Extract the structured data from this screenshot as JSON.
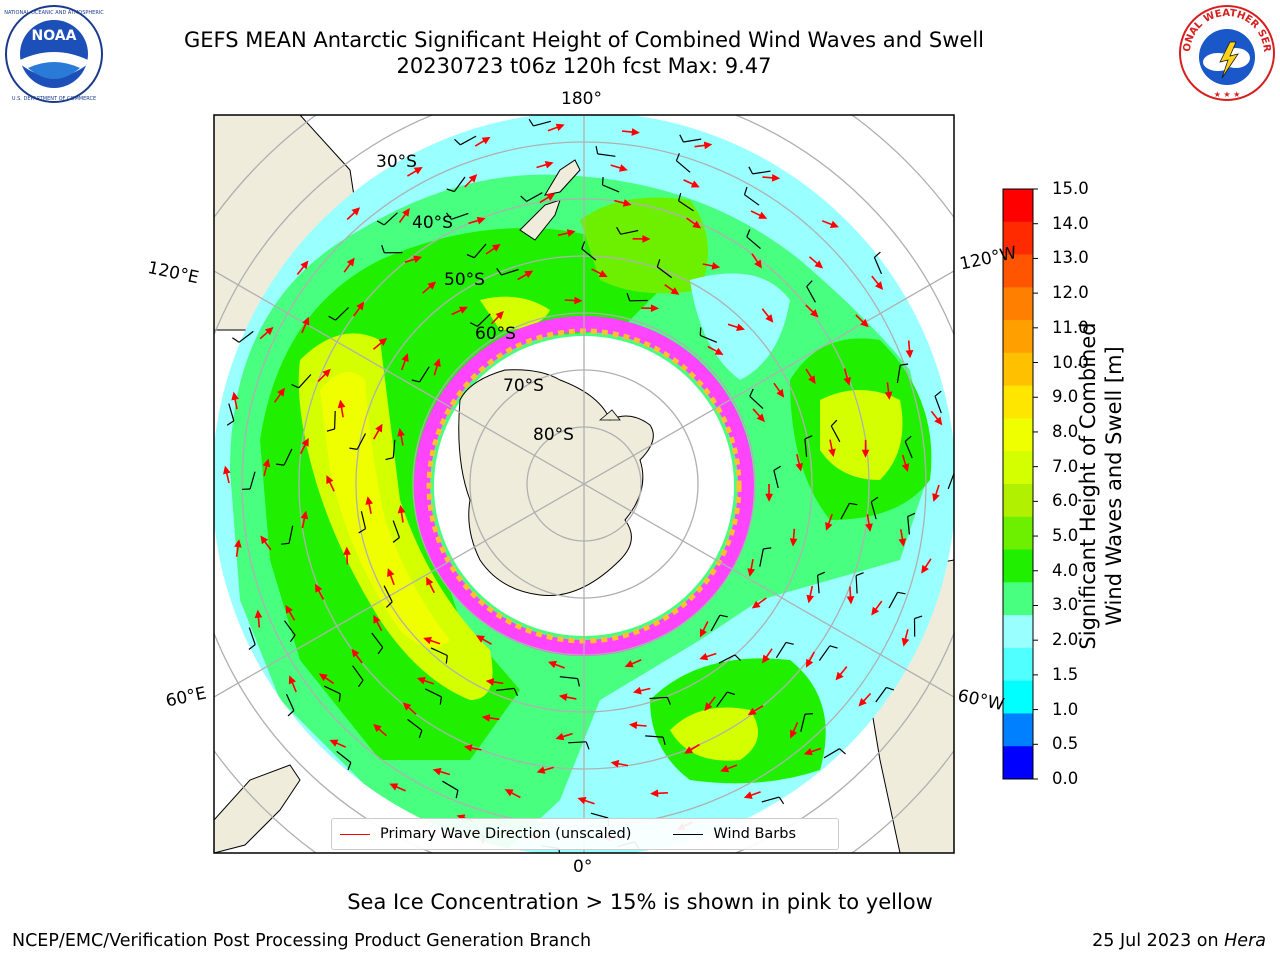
{
  "header": {
    "title_line1": "GEFS MEAN Antarctic Significant Height of Combined Wind Waves and Swell",
    "title_line2": "20230723 t06z 120h fcst   Max: 9.47"
  },
  "logos": {
    "left": {
      "name": "NOAA",
      "ring_text": "NATIONAL OCEANIC AND ATMOSPHERIC ADMINISTRATION · U.S. DEPARTMENT OF COMMERCE"
    },
    "right": {
      "name": "NATIONAL WEATHER SERVICE"
    }
  },
  "map": {
    "longitude_labels": [
      "180°",
      "120°E",
      "120°W",
      "60°E",
      "60°W",
      "0°"
    ],
    "latitude_labels": [
      "30°S",
      "40°S",
      "50°S",
      "60°S",
      "70°S",
      "80°S"
    ],
    "legend": {
      "wave_direction": "Primary Wave Direction (unscaled)",
      "wind_barbs": "Wind Barbs",
      "wave_color": "#ff0000",
      "barb_color": "#000000"
    },
    "land_color": "#efecdc",
    "ice_colors": [
      "#ff44ff",
      "#ffc030",
      "#ffffff"
    ]
  },
  "colorbar": {
    "label_line1": "Significant Height of Combined",
    "label_line2": "Wind Waves and Swell [m]",
    "ticks": [
      "15.0",
      "14.0",
      "13.0",
      "12.0",
      "11.0",
      "10.0",
      "9.0",
      "8.0",
      "7.0",
      "6.0",
      "5.0",
      "4.0",
      "3.0",
      "2.0",
      "1.5",
      "1.0",
      "0.5",
      "0.0"
    ],
    "colors_top_to_bottom": [
      "#ff0000",
      "#ff2a00",
      "#ff5500",
      "#ff7f00",
      "#ffa000",
      "#ffc000",
      "#ffe600",
      "#f0ff00",
      "#d4ff00",
      "#b0f000",
      "#6cf000",
      "#20f000",
      "#48ff80",
      "#9affff",
      "#50ffff",
      "#00ffff",
      "#0080ff",
      "#0000ff"
    ]
  },
  "note": "Sea Ice Concentration > 15% is shown in pink to yellow",
  "footer": {
    "left": "NCEP/EMC/Verification Post Processing Product Generation Branch",
    "right_prefix": "25 Jul 2023 on ",
    "right_italic": "Hera"
  }
}
